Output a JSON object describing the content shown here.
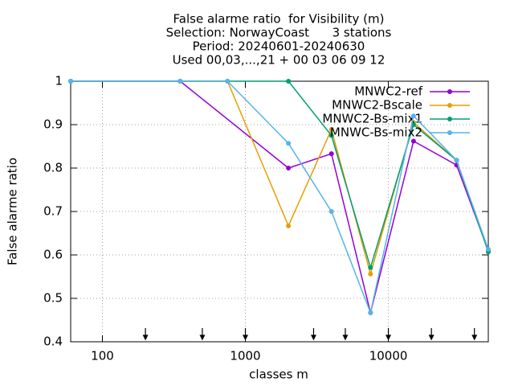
{
  "chart_data": {
    "type": "line",
    "title": [
      "False alarme ratio  for Visibility (m)",
      "Selection: NorwayCoast      3 stations",
      "Period: 20240601-20240630",
      "Used 00,03,...,21 + 00 03 06 09 12"
    ],
    "x_label": "classes m",
    "y_label": "False alarme ratio",
    "log_x": true,
    "grid": true,
    "legend": "top-right",
    "xlim": [
      60,
      50000
    ],
    "ylim": [
      0.4,
      1
    ],
    "xticks": [
      100,
      1000,
      10000
    ],
    "yticks": [
      0.4,
      0.5,
      0.6,
      0.7,
      0.8,
      0.9,
      1
    ],
    "arrows_x": [
      200,
      500,
      1000,
      3000,
      5000,
      10000,
      20000,
      40000
    ],
    "series": [
      {
        "name": "MNWC2-ref",
        "color": "#9400d3",
        "x": [
          60,
          350,
          2000,
          4000,
          7500,
          15000,
          30000,
          50000
        ],
        "values": [
          1,
          1,
          0.8,
          0.833,
          0.467,
          0.862,
          0.807,
          0.61
        ]
      },
      {
        "name": "MNWC2-Bscale",
        "color": "#e69f00",
        "x": [
          60,
          350,
          750,
          2000,
          4000,
          7500,
          15000,
          30000,
          50000
        ],
        "values": [
          1,
          1,
          1,
          0.667,
          0.889,
          0.556,
          0.905,
          0.818,
          0.61
        ]
      },
      {
        "name": "MNWC2-Bs-mix1",
        "color": "#009e73",
        "x": [
          60,
          350,
          750,
          2000,
          4000,
          7500,
          15000,
          30000,
          50000
        ],
        "values": [
          1,
          1,
          1,
          1,
          0.875,
          0.571,
          0.9,
          0.818,
          0.607
        ]
      },
      {
        "name": "MNWC-Bs-mix2",
        "color": "#56b4e9",
        "x": [
          60,
          350,
          750,
          2000,
          4000,
          7500,
          15000,
          30000,
          50000
        ],
        "values": [
          1,
          1,
          1,
          0.857,
          0.7,
          0.467,
          0.92,
          0.818,
          0.613
        ]
      }
    ]
  }
}
